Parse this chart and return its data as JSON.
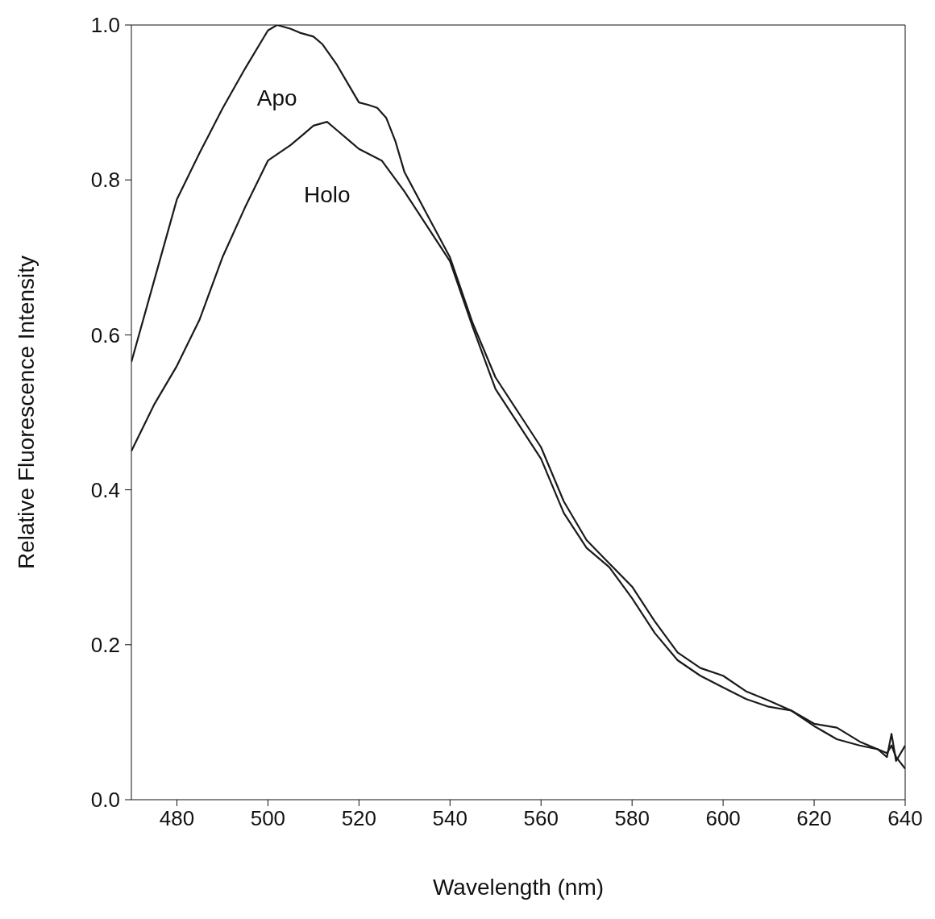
{
  "chart_data": {
    "type": "line",
    "xlabel": "Wavelength (nm)",
    "ylabel": "Relative Fluorescence Intensity",
    "xlim": [
      470,
      640
    ],
    "ylim": [
      0,
      1
    ],
    "xticks": [
      480,
      500,
      520,
      540,
      560,
      580,
      600,
      620,
      640
    ],
    "yticks": [
      {
        "value": 0,
        "label": "0.0"
      },
      0.2,
      0.4,
      0.6,
      0.8,
      {
        "value": 1,
        "label": "1.0"
      }
    ],
    "marker": "none",
    "line_style": "solid",
    "series": [
      {
        "name": "Apo",
        "color": "#1a1a1a",
        "x": [
          470,
          475,
          480,
          485,
          490,
          495,
          500,
          502,
          505,
          507,
          510,
          512,
          515,
          518,
          520,
          522,
          524,
          526,
          528,
          530,
          535,
          540,
          545,
          550,
          555,
          560,
          565,
          570,
          575,
          580,
          585,
          590,
          595,
          600,
          605,
          610,
          615,
          620,
          625,
          630,
          634,
          636,
          637,
          638,
          640
        ],
        "values": [
          0.565,
          0.67,
          0.775,
          0.835,
          0.892,
          0.944,
          0.993,
          1.0,
          0.995,
          0.99,
          0.985,
          0.975,
          0.95,
          0.92,
          0.9,
          0.897,
          0.893,
          0.88,
          0.85,
          0.81,
          0.755,
          0.7,
          0.615,
          0.545,
          0.5,
          0.455,
          0.385,
          0.335,
          0.305,
          0.275,
          0.23,
          0.19,
          0.17,
          0.16,
          0.14,
          0.128,
          0.115,
          0.098,
          0.093,
          0.075,
          0.065,
          0.055,
          0.085,
          0.05,
          0.07
        ]
      },
      {
        "name": "Holo",
        "color": "#1a1a1a",
        "x": [
          470,
          475,
          480,
          485,
          490,
          495,
          500,
          505,
          508,
          510,
          513,
          515,
          518,
          520,
          525,
          530,
          535,
          540,
          545,
          550,
          555,
          560,
          565,
          570,
          575,
          580,
          585,
          590,
          595,
          600,
          605,
          610,
          615,
          620,
          625,
          630,
          634,
          636,
          637,
          638,
          640
        ],
        "values": [
          0.45,
          0.51,
          0.56,
          0.62,
          0.7,
          0.765,
          0.825,
          0.845,
          0.86,
          0.87,
          0.875,
          0.865,
          0.85,
          0.84,
          0.825,
          0.785,
          0.74,
          0.695,
          0.61,
          0.53,
          0.485,
          0.44,
          0.37,
          0.325,
          0.3,
          0.26,
          0.215,
          0.18,
          0.16,
          0.145,
          0.13,
          0.12,
          0.115,
          0.095,
          0.078,
          0.07,
          0.065,
          0.06,
          0.07,
          0.055,
          0.04
        ]
      }
    ]
  }
}
